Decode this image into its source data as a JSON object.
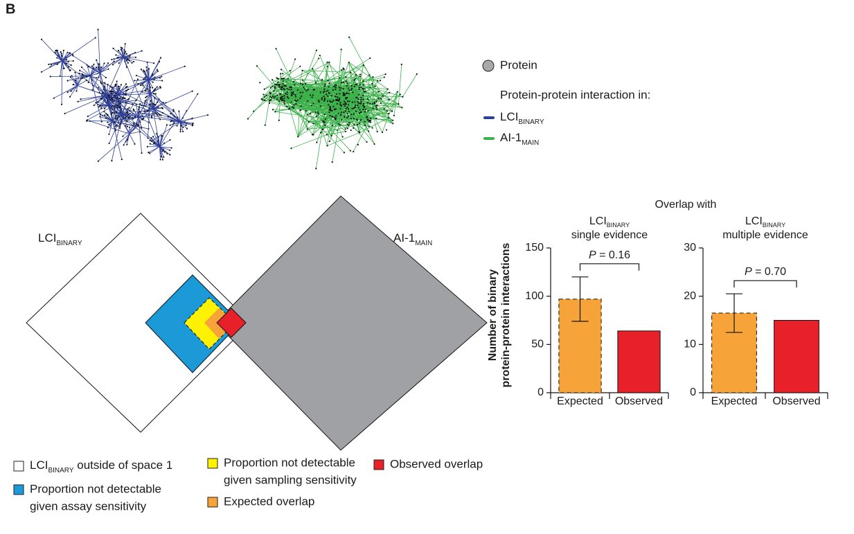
{
  "panel_label": "B",
  "network_legend": {
    "node_label": "Protein",
    "node_color": "#a7a9ac",
    "edge_heading": "Protein-protein interaction in:",
    "edges": [
      {
        "text": "LCI",
        "sub": "BINARY",
        "color": "#2e3f98"
      },
      {
        "text": "AI-1",
        "sub": "MAIN",
        "color": "#3cb14a"
      }
    ]
  },
  "diagram": {
    "left_set": {
      "text": "LCI",
      "sub": "BINARY"
    },
    "right_set": {
      "text": "AI-1",
      "sub": "MAIN"
    },
    "right_color": "#a0a1a4"
  },
  "diagram_legend": [
    {
      "text": "LCI",
      "sub": "BINARY",
      "suffix": " outside of space 1",
      "color": "#ffffff"
    },
    {
      "lines": [
        "Proportion not detectable",
        "given assay sensitivity"
      ],
      "color": "#1b9ad7"
    },
    {
      "lines": [
        "Proportion not detectable",
        "given sampling sensitivity"
      ],
      "color": "#fff200"
    },
    {
      "lines": [
        "Expected overlap"
      ],
      "color": "#f6a43a"
    },
    {
      "lines": [
        "Observed overlap"
      ],
      "color": "#e8202a"
    }
  ],
  "chart_header": "Overlap with",
  "chart_data": [
    {
      "type": "bar",
      "title": {
        "text": "LCI",
        "sub": "BINARY"
      },
      "subtitle": "single evidence",
      "ylabel": [
        "Number of binary",
        "protein-protein interactions"
      ],
      "categories": [
        "Expected",
        "Observed"
      ],
      "values": [
        97,
        64
      ],
      "errors": [
        23,
        null
      ],
      "colors": [
        "#f6a43a",
        "#e8202a"
      ],
      "border_styles": [
        "dashed",
        "solid"
      ],
      "ylim": [
        0,
        150
      ],
      "yticks": [
        0,
        50,
        100,
        150
      ],
      "annotation": {
        "symbol": "P",
        "text": "= 0.16"
      }
    },
    {
      "type": "bar",
      "title": {
        "text": "LCI",
        "sub": "BINARY"
      },
      "subtitle": "multiple evidence",
      "categories": [
        "Expected",
        "Observed"
      ],
      "values": [
        16.5,
        15
      ],
      "errors": [
        4,
        null
      ],
      "colors": [
        "#f6a43a",
        "#e8202a"
      ],
      "border_styles": [
        "dashed",
        "solid"
      ],
      "ylim": [
        0,
        30
      ],
      "yticks": [
        0,
        10,
        20,
        30
      ],
      "annotation": {
        "symbol": "P",
        "text": "= 0.70"
      }
    }
  ]
}
